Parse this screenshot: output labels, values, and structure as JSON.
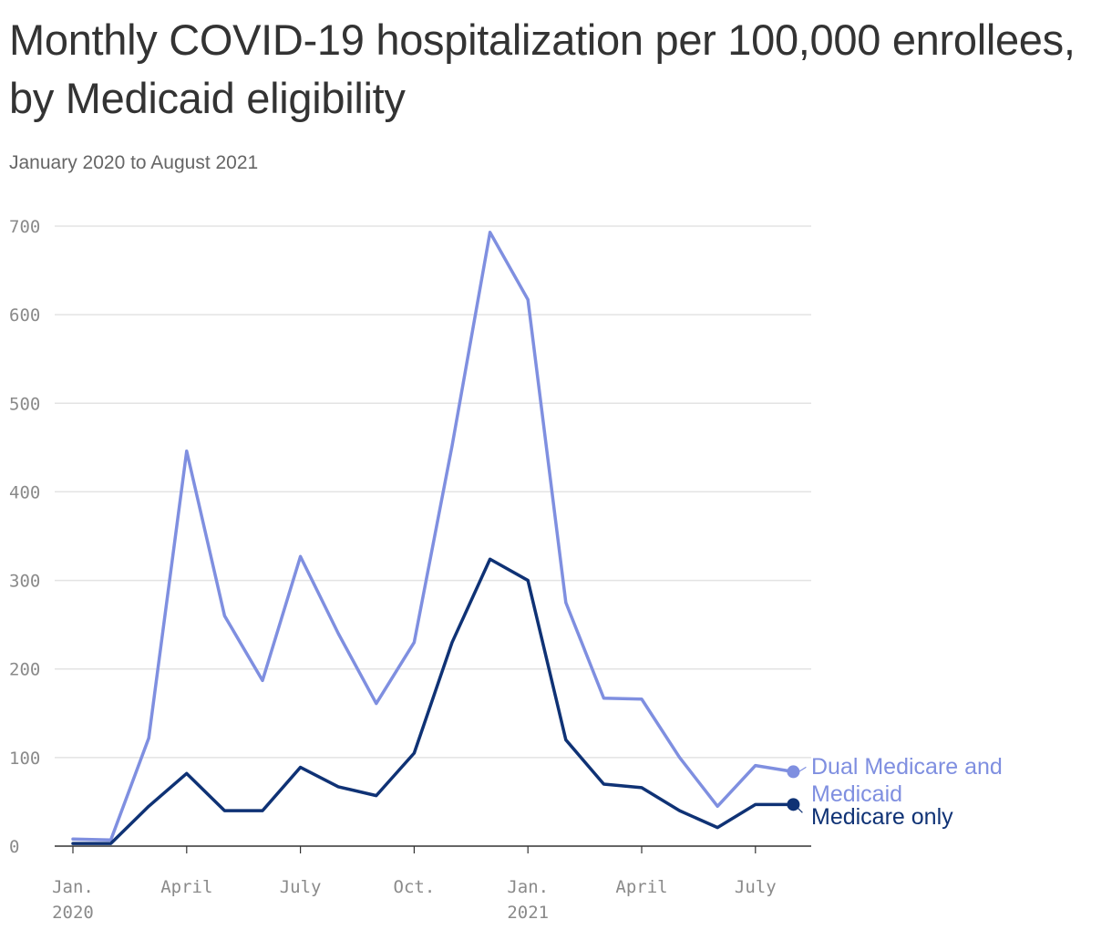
{
  "title": "Monthly COVID-19 hospitalization per 100,000 enrollees, by Medicaid eligibility",
  "subtitle": "January 2020 to August 2021",
  "colors": {
    "dual": "#7f8fe0",
    "medicare_only": "#0f3275",
    "grid": "#e3e3e3",
    "axis": "#333333"
  },
  "chart_data": {
    "type": "line",
    "x": [
      "2020-01",
      "2020-02",
      "2020-03",
      "2020-04",
      "2020-05",
      "2020-06",
      "2020-07",
      "2020-08",
      "2020-09",
      "2020-10",
      "2020-11",
      "2020-12",
      "2021-01",
      "2021-02",
      "2021-03",
      "2021-04",
      "2021-05",
      "2021-06",
      "2021-07",
      "2021-08"
    ],
    "series": [
      {
        "name": "Dual Medicare and Medicaid",
        "values": [
          8,
          7,
          122,
          446,
          260,
          187,
          327,
          240,
          161,
          230,
          452,
          693,
          617,
          275,
          167,
          166,
          100,
          45,
          91,
          84
        ]
      },
      {
        "name": "Medicare only",
        "values": [
          3,
          3,
          45,
          82,
          40,
          40,
          89,
          67,
          57,
          105,
          230,
          324,
          300,
          120,
          70,
          66,
          40,
          21,
          47,
          47
        ]
      }
    ],
    "y_ticks": [
      "0",
      "100",
      "200",
      "300",
      "400",
      "500",
      "600",
      "700"
    ],
    "ylim": [
      0,
      700
    ],
    "x_ticks": [
      {
        "label": "Jan.",
        "sub": "2020",
        "x": "2020-01"
      },
      {
        "label": "April",
        "sub": "",
        "x": "2020-04"
      },
      {
        "label": "July",
        "sub": "",
        "x": "2020-07"
      },
      {
        "label": "Oct.",
        "sub": "",
        "x": "2020-10"
      },
      {
        "label": "Jan.",
        "sub": "2021",
        "x": "2021-01"
      },
      {
        "label": "April",
        "sub": "",
        "x": "2021-04"
      },
      {
        "label": "July",
        "sub": "",
        "x": "2021-07"
      }
    ],
    "grid": true,
    "legend": "direct labels at line ends"
  }
}
